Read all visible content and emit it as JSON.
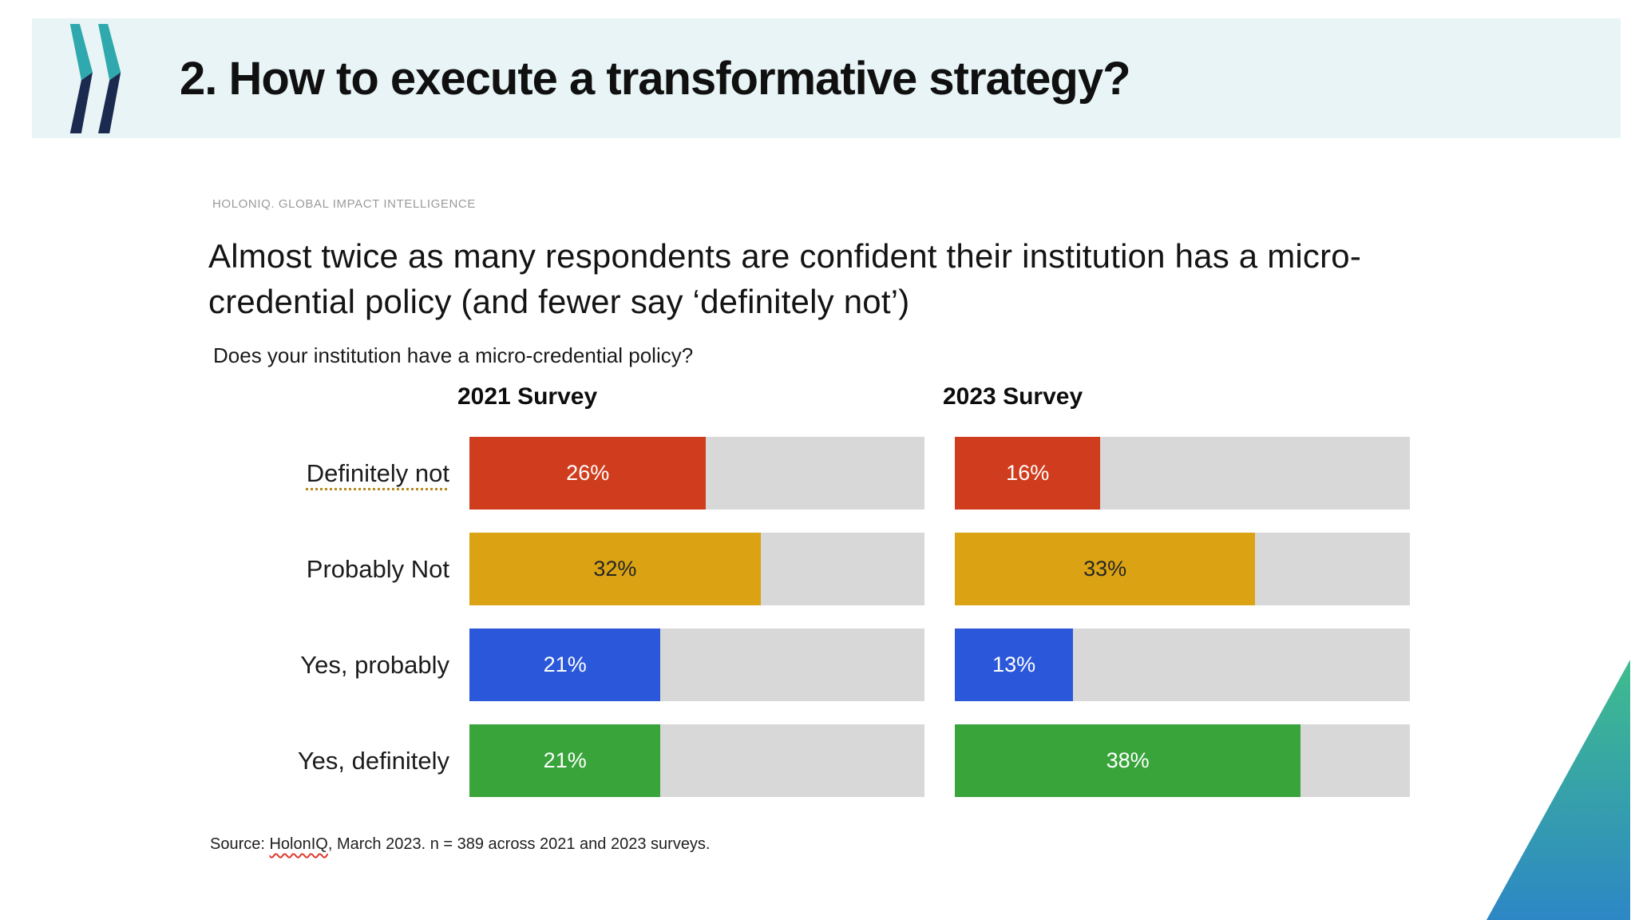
{
  "slide": {
    "header": {
      "title": "2. How to execute a transformative strategy?",
      "background": "#e8f4f6"
    },
    "logo": {
      "name": "oecd-double-chevron",
      "teal": "#2fa9ad",
      "navy": "#1b2a4f"
    }
  },
  "report": {
    "brand": "HOLONIQ. GLOBAL IMPACT INTELLIGENCE",
    "source": {
      "prefix": "Source: ",
      "linked_text": "HolonIQ",
      "rest": ", March 2023. n = 389 across 2021 and 2023 surveys."
    }
  },
  "chart_data": {
    "type": "bar",
    "orientation": "horizontal",
    "title": "Almost twice as many respondents are confident their institution has a micro-credential policy (and fewer say ‘definitely not’)",
    "question": "Does your institution have a micro-credential policy?",
    "categories": [
      "Definitely not",
      "Probably Not",
      "Yes, probably",
      "Yes, definitely"
    ],
    "series": [
      {
        "name": "2021 Survey",
        "values": [
          26,
          32,
          21,
          21
        ]
      },
      {
        "name": "2023 Survey",
        "values": [
          16,
          33,
          13,
          38
        ]
      }
    ],
    "value_suffix": "%",
    "scale_max_percent": 50,
    "bar_colors": [
      "#d03d1e",
      "#dba313",
      "#2b58da",
      "#38a43a"
    ],
    "value_label_colors": [
      "#ffffff",
      "#262626",
      "#ffffff",
      "#ffffff"
    ],
    "track_color": "#d8d8d8",
    "category_proofing_underline": [
      true,
      false,
      false,
      false
    ],
    "grid": false,
    "legend_position": "none"
  },
  "decor": {
    "triangle_top": "#3fbc8d",
    "triangle_bottom": "#2d87c5"
  }
}
